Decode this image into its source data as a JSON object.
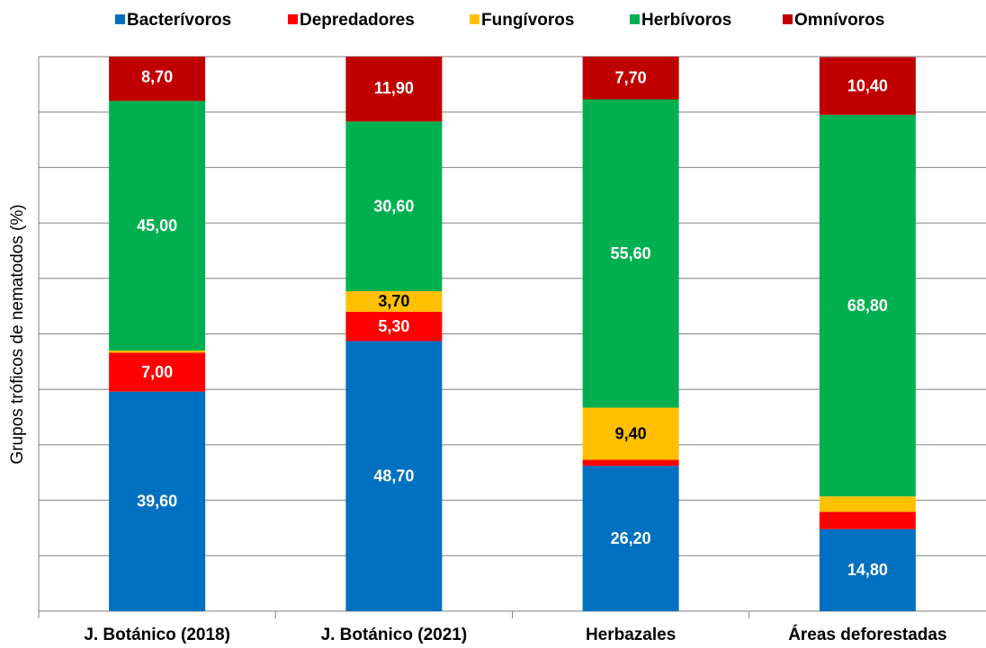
{
  "chart_data": {
    "type": "stacked_bar",
    "ylabel": "Grupos tróficos de nematodos (%)",
    "categories": [
      "J. Botánico (2018)",
      "J. Botánico (2021)",
      "Herbazales",
      "Áreas deforestadas"
    ],
    "series": [
      {
        "name": "Bacterívoros",
        "color": "#0070c0",
        "label_color": "#ffffff",
        "values": [
          39.6,
          48.7,
          26.2,
          14.8
        ],
        "value_labels": [
          "39,60",
          "48,70",
          "26,20",
          "14,80"
        ]
      },
      {
        "name": "Depredadores",
        "color": "#ff0000",
        "label_color": "#ffffff",
        "values": [
          7.0,
          5.3,
          1.1,
          3.1
        ],
        "value_labels": [
          "7,00",
          "5,30",
          null,
          null
        ]
      },
      {
        "name": "Fungívoros",
        "color": "#ffc000",
        "label_color": "#000000",
        "values": [
          0.4,
          3.7,
          9.4,
          2.8
        ],
        "value_labels": [
          null,
          "3,70",
          "9,40",
          null
        ]
      },
      {
        "name": "Herbívoros",
        "color": "#00b050",
        "label_color": "#ffffff",
        "values": [
          45.0,
          30.6,
          55.6,
          68.8
        ],
        "value_labels": [
          "45,00",
          "30,60",
          "55,60",
          "68,80"
        ]
      },
      {
        "name": "Omnívoros",
        "color": "#c00000",
        "label_color": "#ffffff",
        "values": [
          8.7,
          11.9,
          7.7,
          10.4
        ],
        "value_labels": [
          "8,70",
          "11,90",
          "7,70",
          "10,40"
        ]
      }
    ],
    "ylim": [
      0,
      100
    ],
    "yticks": [
      0,
      10,
      20,
      30,
      40,
      50,
      60,
      70,
      80,
      90,
      100
    ],
    "grid": true,
    "legend": "top"
  }
}
